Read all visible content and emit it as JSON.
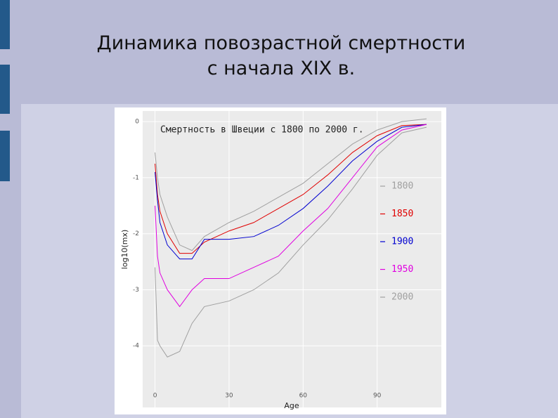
{
  "slide": {
    "title_lines": [
      "Динамика повозрастной смертности",
      "с начала XIX в."
    ]
  },
  "chart_data": {
    "type": "line",
    "title": "Смертность в Швеции с 1800 по 2000 г.",
    "x_label": "Age",
    "y_label": "log10(mx)",
    "x": [
      0,
      1,
      2,
      5,
      10,
      15,
      20,
      30,
      40,
      50,
      60,
      70,
      80,
      90,
      100,
      110
    ],
    "series": [
      {
        "name": "1800",
        "color": "#a0a0a0",
        "values": [
          -0.55,
          -1.0,
          -1.3,
          -1.7,
          -2.2,
          -2.3,
          -2.05,
          -1.8,
          -1.6,
          -1.35,
          -1.1,
          -0.75,
          -0.4,
          -0.15,
          0.0,
          0.05
        ]
      },
      {
        "name": "1850",
        "color": "#e00000",
        "values": [
          -0.75,
          -1.3,
          -1.6,
          -2.0,
          -2.35,
          -2.35,
          -2.15,
          -1.95,
          -1.8,
          -1.55,
          -1.3,
          -0.95,
          -0.55,
          -0.25,
          -0.07,
          -0.05
        ]
      },
      {
        "name": "1900",
        "color": "#0000d0",
        "values": [
          -0.9,
          -1.4,
          -1.8,
          -2.2,
          -2.45,
          -2.45,
          -2.1,
          -2.1,
          -2.05,
          -1.85,
          -1.55,
          -1.15,
          -0.7,
          -0.35,
          -0.1,
          -0.05
        ]
      },
      {
        "name": "1950",
        "color": "#e000e0",
        "values": [
          -1.5,
          -2.4,
          -2.7,
          -3.0,
          -3.3,
          -3.0,
          -2.8,
          -2.8,
          -2.6,
          -2.4,
          -1.95,
          -1.55,
          -1.0,
          -0.45,
          -0.15,
          -0.05
        ]
      },
      {
        "name": "2000",
        "color": "#a0a0a0",
        "values": [
          -2.6,
          -3.9,
          -4.0,
          -4.2,
          -4.1,
          -3.6,
          -3.3,
          -3.2,
          -3.0,
          -2.7,
          -2.2,
          -1.75,
          -1.2,
          -0.6,
          -0.2,
          -0.1
        ]
      }
    ],
    "xlim": [
      -5,
      116
    ],
    "ylim": [
      -5.1,
      0.19
    ],
    "xticks": [
      0,
      30,
      60,
      90
    ],
    "yticks": [
      0,
      -1,
      -2,
      -3,
      -4
    ],
    "grid": true,
    "legend": "right"
  }
}
